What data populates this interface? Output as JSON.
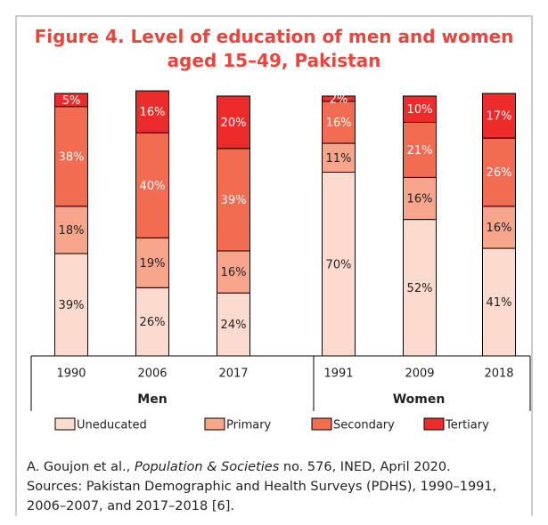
{
  "chart_data": {
    "type": "stacked_bar",
    "title": "Figure 4. Level of education of men and women aged 15–49, Pakistan",
    "categories": [
      "1990",
      "2006",
      "2017",
      "1991",
      "2009",
      "2018"
    ],
    "groups": [
      {
        "name": "Men",
        "categories": [
          0,
          1,
          2
        ]
      },
      {
        "name": "Women",
        "categories": [
          3,
          4,
          5
        ]
      }
    ],
    "ylim": [
      0,
      100
    ],
    "series": [
      {
        "name": "Uneducated",
        "color": "#fcdacd",
        "values": [
          39,
          26,
          24,
          70,
          52,
          41
        ],
        "value_labels": [
          "39%",
          "26%",
          "24%",
          "70%",
          "52%",
          "41%"
        ]
      },
      {
        "name": "Primary",
        "color": "#f7a68c",
        "values": [
          18,
          19,
          16,
          11,
          16,
          16
        ],
        "value_labels": [
          "18%",
          "19%",
          "16%",
          "11%",
          "16%",
          "16%"
        ]
      },
      {
        "name": "Secondary",
        "color": "#f26c52",
        "values": [
          38,
          40,
          39,
          16,
          21,
          26
        ],
        "value_labels": [
          "38%",
          "40%",
          "39%",
          "16%",
          "21%",
          "26%"
        ]
      },
      {
        "name": "Tertiary",
        "color": "#ee2b2b",
        "values": [
          5,
          16,
          20,
          2,
          10,
          17
        ],
        "value_labels": [
          "5%",
          "16%",
          "20%",
          "2%",
          "10%",
          "17%"
        ]
      }
    ],
    "citation": [
      "A. Goujon et al., ",
      "Population & Societies",
      " no. 576, INED, April 2020."
    ],
    "sources": "Sources: Pakistan Demographic and Health Surveys (PDHS), 1990–1991, 2006–2007, and 2017–2018 [6]."
  }
}
